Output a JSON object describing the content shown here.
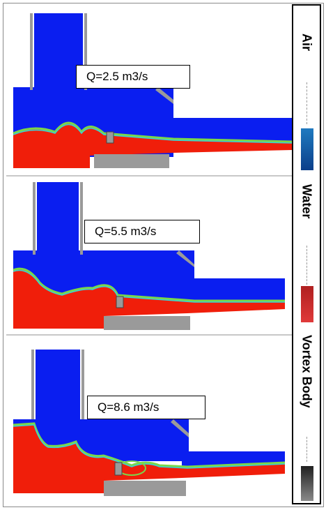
{
  "panels": [
    {
      "label": "Q=2.5 m3/s"
    },
    {
      "label": "Q=5.5 m3/s"
    },
    {
      "label": "Q=8.6 m3/s"
    }
  ],
  "legend": {
    "items": [
      {
        "label": "Air",
        "color": "#1a5fb4"
      },
      {
        "label": "Water",
        "color": "#c62828"
      },
      {
        "label": "Vortex Body",
        "color": "#4a4a4a"
      }
    ]
  },
  "colors": {
    "air": "#0a1ef0",
    "water": "#f01e0a",
    "interface_cyan": "#36d4d8",
    "interface_green": "#7ad64a",
    "structure": "#9a9a9a"
  }
}
